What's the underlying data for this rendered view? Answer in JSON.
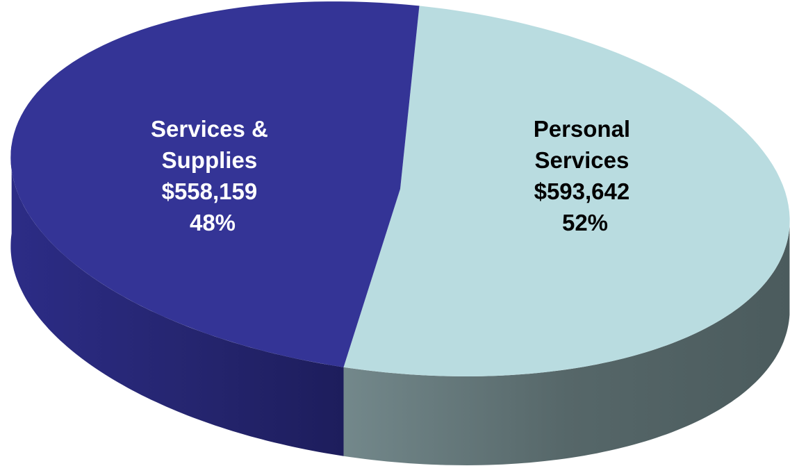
{
  "chart_data": {
    "type": "pie",
    "style": "3d",
    "title": "",
    "legend": "none",
    "slices": [
      {
        "label_lines": [
          "Personal",
          "Services"
        ],
        "amount": "$593,642",
        "percent": "52%",
        "value": 593642,
        "color": "#b9dce0",
        "label_color": "#000000"
      },
      {
        "label_lines": [
          "Services &",
          "Supplies"
        ],
        "amount": "$558,159",
        "percent": "48%",
        "value": 558159,
        "color": "#343496",
        "label_color": "#ffffff"
      }
    ]
  }
}
